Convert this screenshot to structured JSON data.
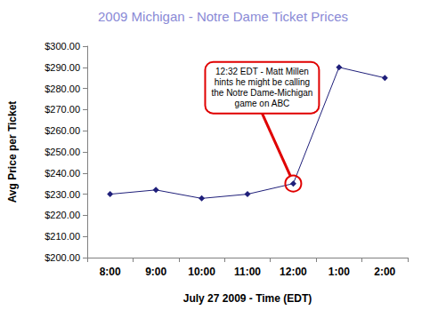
{
  "chart_data": {
    "type": "line",
    "title": "2009 Michigan - Notre Dame Ticket Prices",
    "x_label": "July 27 2009 - Time (EDT)",
    "y_label": "Avg Price per Ticket",
    "categories": [
      "8:00",
      "9:00",
      "10:00",
      "11:00",
      "12:00",
      "1:00",
      "2:00"
    ],
    "values": [
      230,
      232,
      228,
      230,
      235,
      290,
      285
    ],
    "color": "#1f1f7a",
    "marker": "diamond",
    "ylim": [
      200,
      300
    ],
    "yticks": [
      {
        "value": 200,
        "label": "$200.00"
      },
      {
        "value": 210,
        "label": "$210.00"
      },
      {
        "value": 220,
        "label": "$220.00"
      },
      {
        "value": 230,
        "label": "$230.00"
      },
      {
        "value": 240,
        "label": "$240.00"
      },
      {
        "value": 250,
        "label": "$250.00"
      },
      {
        "value": 260,
        "label": "$260.00"
      },
      {
        "value": 270,
        "label": "$270.00"
      },
      {
        "value": 280,
        "label": "$280.00"
      },
      {
        "value": 290,
        "label": "$290.00"
      },
      {
        "value": 300,
        "label": "$300.00"
      }
    ],
    "grid": false,
    "annotation": {
      "text": "12:32 EDT - Matt Millen\nhints he might be calling\nthe Notre Dame-Michigan\ngame on ABC",
      "category": "12:00"
    }
  }
}
